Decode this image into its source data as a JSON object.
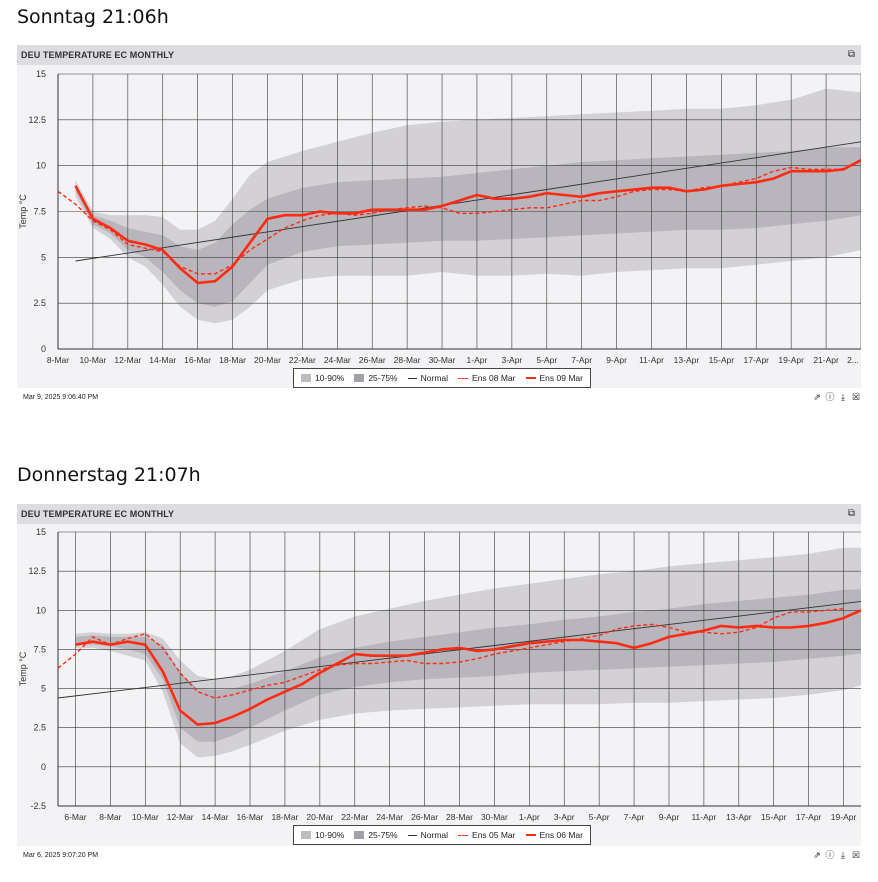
{
  "captions": [
    "Sonntag 21:06h",
    "Donnerstag 21:07h"
  ],
  "colors": {
    "band_outer": "#c8c6cc",
    "band_inner": "#a9a7ad",
    "normal": "#333333",
    "ens": "#ff2a12",
    "header": "#dddce0",
    "plot_bg": "#f3f2f4"
  },
  "icons": {
    "window": "restore-window-icon",
    "tools": [
      "external-link-icon",
      "info-icon",
      "download-icon",
      "excel-icon"
    ]
  },
  "panels": [
    {
      "title": "DEU TEMPERATURE EC MONTHLY",
      "timestamp": "Mar 9, 2025 9:06:40 PM",
      "legend": [
        "10-90%",
        "25-75%",
        "Normal",
        "Ens 08 Mar",
        "Ens 09 Mar"
      ],
      "chart_data": {
        "type": "line",
        "ylabel": "Temp °C",
        "ylim": [
          0,
          15
        ],
        "yticks": [
          0,
          2.5,
          5,
          7.5,
          10,
          12.5,
          15
        ],
        "ytick_labels": [
          "0",
          "2.5",
          "5",
          "7.5",
          "10",
          "12.5",
          "15"
        ],
        "x_range": [
          "8-Mar",
          "23-Apr"
        ],
        "xtick_labels": [
          "8-Mar",
          "10-Mar",
          "12-Mar",
          "14-Mar",
          "16-Mar",
          "18-Mar",
          "20-Mar",
          "22-Mar",
          "24-Mar",
          "26-Mar",
          "28-Mar",
          "30-Mar",
          "1-Apr",
          "3-Apr",
          "5-Apr",
          "7-Apr",
          "9-Apr",
          "11-Apr",
          "13-Apr",
          "15-Apr",
          "17-Apr",
          "19-Apr",
          "21-Apr",
          "2..."
        ],
        "grid": true,
        "legend_position": "bottom-center",
        "series": [
          {
            "name": "10-90%",
            "kind": "band",
            "x": [
              "9-Mar",
              "10-Mar",
              "11-Mar",
              "12-Mar",
              "13-Mar",
              "14-Mar",
              "15-Mar",
              "16-Mar",
              "17-Mar",
              "18-Mar",
              "19-Mar",
              "20-Mar",
              "22-Mar",
              "24-Mar",
              "26-Mar",
              "28-Mar",
              "30-Mar",
              "1-Apr",
              "3-Apr",
              "5-Apr",
              "7-Apr",
              "9-Apr",
              "11-Apr",
              "13-Apr",
              "15-Apr",
              "17-Apr",
              "19-Apr",
              "21-Apr",
              "23-Apr"
            ],
            "low": [
              8.3,
              6.6,
              6.0,
              5.0,
              4.5,
              3.5,
              2.3,
              1.6,
              1.4,
              1.6,
              2.3,
              3.2,
              3.8,
              4.0,
              4.0,
              4.0,
              4.2,
              4.0,
              4.0,
              4.1,
              4.0,
              4.2,
              4.3,
              4.4,
              4.4,
              4.6,
              4.8,
              5.0,
              5.4
            ],
            "high": [
              9.2,
              7.5,
              7.3,
              7.3,
              7.3,
              7.2,
              6.5,
              6.5,
              7.0,
              8.2,
              9.5,
              10.2,
              10.8,
              11.3,
              11.8,
              12.2,
              12.4,
              12.5,
              12.6,
              12.7,
              12.8,
              12.9,
              13.0,
              13.1,
              13.1,
              13.3,
              13.6,
              14.2,
              14.0
            ]
          },
          {
            "name": "25-75%",
            "kind": "band",
            "x": [
              "9-Mar",
              "10-Mar",
              "11-Mar",
              "12-Mar",
              "13-Mar",
              "14-Mar",
              "15-Mar",
              "16-Mar",
              "17-Mar",
              "18-Mar",
              "19-Mar",
              "20-Mar",
              "22-Mar",
              "24-Mar",
              "26-Mar",
              "28-Mar",
              "30-Mar",
              "1-Apr",
              "3-Apr",
              "5-Apr",
              "7-Apr",
              "9-Apr",
              "11-Apr",
              "13-Apr",
              "15-Apr",
              "17-Apr",
              "19-Apr",
              "21-Apr",
              "23-Apr"
            ],
            "low": [
              8.6,
              6.8,
              6.3,
              5.4,
              5.0,
              4.2,
              3.2,
              2.5,
              2.3,
              2.6,
              3.6,
              4.6,
              5.3,
              5.6,
              5.7,
              5.8,
              5.9,
              5.9,
              6.0,
              6.1,
              6.2,
              6.3,
              6.4,
              6.5,
              6.5,
              6.6,
              6.8,
              7.0,
              7.3
            ],
            "high": [
              9.0,
              7.3,
              7.0,
              6.6,
              6.4,
              6.2,
              5.6,
              5.4,
              5.8,
              6.8,
              7.6,
              8.2,
              8.8,
              9.1,
              9.2,
              9.3,
              9.4,
              9.6,
              9.8,
              10.0,
              10.2,
              10.3,
              10.4,
              10.5,
              10.6,
              10.7,
              10.8,
              11.0,
              11.0
            ]
          },
          {
            "name": "Normal",
            "kind": "line",
            "x": [
              "9-Mar",
              "23-Apr"
            ],
            "y": [
              4.8,
              11.3
            ]
          },
          {
            "name": "Ens 08 Mar",
            "kind": "dashed",
            "x": [
              "8-Mar",
              "9-Mar",
              "10-Mar",
              "11-Mar",
              "12-Mar",
              "13-Mar",
              "14-Mar",
              "15-Mar",
              "16-Mar",
              "17-Mar",
              "18-Mar",
              "19-Mar",
              "20-Mar",
              "21-Mar",
              "22-Mar",
              "23-Mar",
              "24-Mar",
              "25-Mar",
              "26-Mar",
              "27-Mar",
              "28-Mar",
              "29-Mar",
              "30-Mar",
              "31-Mar",
              "1-Apr",
              "2-Apr",
              "3-Apr",
              "4-Apr",
              "5-Apr",
              "6-Apr",
              "7-Apr",
              "8-Apr",
              "9-Apr",
              "10-Apr",
              "11-Apr",
              "12-Apr",
              "13-Apr",
              "14-Apr",
              "15-Apr",
              "16-Apr",
              "17-Apr",
              "18-Apr",
              "19-Apr",
              "20-Apr",
              "21-Apr",
              "22-Apr"
            ],
            "y": [
              8.6,
              7.9,
              7.0,
              6.5,
              5.7,
              5.5,
              5.3,
              4.5,
              4.1,
              4.1,
              4.6,
              5.4,
              6.0,
              6.6,
              7.0,
              7.3,
              7.4,
              7.3,
              7.4,
              7.6,
              7.7,
              7.8,
              7.7,
              7.4,
              7.4,
              7.5,
              7.6,
              7.7,
              7.7,
              7.9,
              8.1,
              8.1,
              8.3,
              8.6,
              8.7,
              8.7,
              8.6,
              8.8,
              8.9,
              9.1,
              9.3,
              9.7,
              9.9,
              9.8,
              9.8,
              9.8
            ]
          },
          {
            "name": "Ens 09 Mar",
            "kind": "line",
            "x": [
              "9-Mar",
              "10-Mar",
              "11-Mar",
              "12-Mar",
              "13-Mar",
              "14-Mar",
              "15-Mar",
              "16-Mar",
              "17-Mar",
              "18-Mar",
              "19-Mar",
              "20-Mar",
              "21-Mar",
              "22-Mar",
              "23-Mar",
              "24-Mar",
              "25-Mar",
              "26-Mar",
              "27-Mar",
              "28-Mar",
              "29-Mar",
              "30-Mar",
              "31-Mar",
              "1-Apr",
              "2-Apr",
              "3-Apr",
              "4-Apr",
              "5-Apr",
              "6-Apr",
              "7-Apr",
              "8-Apr",
              "9-Apr",
              "10-Apr",
              "11-Apr",
              "12-Apr",
              "13-Apr",
              "14-Apr",
              "15-Apr",
              "16-Apr",
              "17-Apr",
              "18-Apr",
              "19-Apr",
              "20-Apr",
              "21-Apr",
              "22-Apr",
              "23-Apr"
            ],
            "y": [
              8.9,
              7.1,
              6.6,
              5.9,
              5.7,
              5.4,
              4.4,
              3.6,
              3.7,
              4.5,
              5.8,
              7.1,
              7.3,
              7.3,
              7.5,
              7.4,
              7.4,
              7.6,
              7.6,
              7.6,
              7.6,
              7.8,
              8.1,
              8.4,
              8.2,
              8.2,
              8.3,
              8.5,
              8.4,
              8.3,
              8.5,
              8.6,
              8.7,
              8.8,
              8.8,
              8.6,
              8.7,
              8.9,
              9.0,
              9.1,
              9.3,
              9.7,
              9.7,
              9.7,
              9.8,
              10.3
            ]
          }
        ]
      }
    },
    {
      "title": "DEU TEMPERATURE EC MONTHLY",
      "timestamp": "Mar 6, 2025 9:07:20 PM",
      "legend": [
        "10-90%",
        "25-75%",
        "Normal",
        "Ens 05 Mar",
        "Ens 06 Mar"
      ],
      "chart_data": {
        "type": "line",
        "ylabel": "Temp °C",
        "ylim": [
          -2.5,
          15
        ],
        "yticks": [
          -2.5,
          0,
          2.5,
          5,
          7.5,
          10,
          12.5,
          15
        ],
        "ytick_labels": [
          "-2.5",
          "0",
          "2.5",
          "5",
          "7.5",
          "10",
          "12.5",
          "15"
        ],
        "x_range": [
          "5-Mar",
          "20-Apr"
        ],
        "xtick_labels": [
          "6-Mar",
          "8-Mar",
          "10-Mar",
          "12-Mar",
          "14-Mar",
          "16-Mar",
          "18-Mar",
          "20-Mar",
          "22-Mar",
          "24-Mar",
          "26-Mar",
          "28-Mar",
          "30-Mar",
          "1-Apr",
          "3-Apr",
          "5-Apr",
          "7-Apr",
          "9-Apr",
          "11-Apr",
          "13-Apr",
          "15-Apr",
          "17-Apr",
          "19-Apr"
        ],
        "grid": true,
        "legend_position": "bottom-center",
        "series": [
          {
            "name": "10-90%",
            "kind": "band",
            "x": [
              "6-Mar",
              "7-Mar",
              "8-Mar",
              "9-Mar",
              "10-Mar",
              "11-Mar",
              "12-Mar",
              "13-Mar",
              "14-Mar",
              "15-Mar",
              "16-Mar",
              "18-Mar",
              "20-Mar",
              "22-Mar",
              "24-Mar",
              "26-Mar",
              "28-Mar",
              "30-Mar",
              "1-Apr",
              "3-Apr",
              "5-Apr",
              "7-Apr",
              "9-Apr",
              "11-Apr",
              "13-Apr",
              "15-Apr",
              "17-Apr",
              "19-Apr",
              "21-Apr"
            ],
            "low": [
              7.6,
              7.6,
              7.4,
              7.1,
              6.8,
              4.8,
              1.5,
              0.6,
              0.7,
              1.0,
              1.4,
              2.3,
              3.0,
              3.4,
              3.6,
              3.7,
              3.8,
              3.9,
              4.0,
              4.0,
              4.0,
              4.1,
              4.1,
              4.2,
              4.3,
              4.4,
              4.6,
              4.9,
              5.5
            ],
            "high": [
              8.5,
              8.6,
              8.5,
              8.5,
              8.6,
              8.2,
              6.8,
              5.8,
              5.6,
              5.8,
              6.2,
              7.4,
              8.8,
              9.6,
              10.1,
              10.6,
              11.0,
              11.4,
              11.7,
              12.0,
              12.3,
              12.5,
              12.8,
              13.0,
              13.2,
              13.4,
              13.6,
              14.0,
              14.0
            ]
          },
          {
            "name": "25-75%",
            "kind": "band",
            "x": [
              "6-Mar",
              "7-Mar",
              "8-Mar",
              "9-Mar",
              "10-Mar",
              "11-Mar",
              "12-Mar",
              "13-Mar",
              "14-Mar",
              "15-Mar",
              "16-Mar",
              "18-Mar",
              "20-Mar",
              "22-Mar",
              "24-Mar",
              "26-Mar",
              "28-Mar",
              "30-Mar",
              "1-Apr",
              "3-Apr",
              "5-Apr",
              "7-Apr",
              "9-Apr",
              "11-Apr",
              "13-Apr",
              "15-Apr",
              "17-Apr",
              "19-Apr",
              "21-Apr"
            ],
            "low": [
              7.8,
              7.8,
              7.7,
              7.5,
              7.2,
              5.6,
              2.5,
              1.6,
              1.6,
              2.0,
              2.5,
              3.6,
              4.6,
              5.1,
              5.4,
              5.6,
              5.7,
              5.8,
              6.0,
              6.1,
              6.2,
              6.3,
              6.4,
              6.5,
              6.6,
              6.7,
              6.9,
              7.1,
              7.4
            ],
            "high": [
              8.3,
              8.4,
              8.3,
              8.3,
              8.3,
              7.8,
              6.0,
              5.0,
              4.9,
              5.0,
              5.3,
              6.1,
              7.0,
              7.6,
              8.0,
              8.3,
              8.6,
              8.9,
              9.1,
              9.4,
              9.6,
              9.9,
              10.1,
              10.4,
              10.6,
              10.8,
              11.0,
              11.3,
              11.4
            ]
          },
          {
            "name": "Normal",
            "kind": "line",
            "x": [
              "5-Mar",
              "21-Apr"
            ],
            "y": [
              4.4,
              10.7
            ]
          },
          {
            "name": "Ens 05 Mar",
            "kind": "dashed",
            "x": [
              "5-Mar",
              "6-Mar",
              "7-Mar",
              "8-Mar",
              "9-Mar",
              "10-Mar",
              "11-Mar",
              "12-Mar",
              "13-Mar",
              "14-Mar",
              "15-Mar",
              "16-Mar",
              "17-Mar",
              "18-Mar",
              "19-Mar",
              "20-Mar",
              "21-Mar",
              "22-Mar",
              "23-Mar",
              "24-Mar",
              "25-Mar",
              "26-Mar",
              "27-Mar",
              "28-Mar",
              "29-Mar",
              "30-Mar",
              "31-Mar",
              "1-Apr",
              "2-Apr",
              "3-Apr",
              "4-Apr",
              "5-Apr",
              "6-Apr",
              "7-Apr",
              "8-Apr",
              "9-Apr",
              "10-Apr",
              "11-Apr",
              "12-Apr",
              "13-Apr",
              "14-Apr",
              "15-Apr",
              "16-Apr",
              "17-Apr",
              "18-Apr",
              "19-Apr"
            ],
            "y": [
              6.3,
              7.2,
              8.3,
              7.8,
              8.2,
              8.5,
              7.6,
              6.0,
              4.8,
              4.4,
              4.6,
              4.9,
              5.2,
              5.4,
              5.8,
              6.2,
              6.5,
              6.6,
              6.6,
              6.7,
              6.8,
              6.6,
              6.6,
              6.7,
              6.9,
              7.2,
              7.4,
              7.6,
              7.8,
              8.0,
              8.2,
              8.4,
              8.8,
              9.0,
              9.1,
              8.9,
              8.6,
              8.6,
              8.5,
              8.6,
              8.9,
              9.5,
              9.9,
              9.9,
              10.0,
              10.1
            ]
          },
          {
            "name": "Ens 06 Mar",
            "kind": "line",
            "x": [
              "6-Mar",
              "7-Mar",
              "8-Mar",
              "9-Mar",
              "10-Mar",
              "11-Mar",
              "12-Mar",
              "13-Mar",
              "14-Mar",
              "15-Mar",
              "16-Mar",
              "17-Mar",
              "18-Mar",
              "19-Mar",
              "20-Mar",
              "21-Mar",
              "22-Mar",
              "23-Mar",
              "24-Mar",
              "25-Mar",
              "26-Mar",
              "27-Mar",
              "28-Mar",
              "29-Mar",
              "30-Mar",
              "31-Mar",
              "1-Apr",
              "2-Apr",
              "3-Apr",
              "4-Apr",
              "5-Apr",
              "6-Apr",
              "7-Apr",
              "8-Apr",
              "9-Apr",
              "10-Apr",
              "11-Apr",
              "12-Apr",
              "13-Apr",
              "14-Apr",
              "15-Apr",
              "16-Apr",
              "17-Apr",
              "18-Apr",
              "19-Apr",
              "20-Apr"
            ],
            "y": [
              7.8,
              8.0,
              7.8,
              8.0,
              7.8,
              6.1,
              3.6,
              2.7,
              2.8,
              3.2,
              3.7,
              4.3,
              4.8,
              5.3,
              6.0,
              6.6,
              7.2,
              7.1,
              7.1,
              7.1,
              7.3,
              7.5,
              7.6,
              7.4,
              7.5,
              7.7,
              7.9,
              8.0,
              8.1,
              8.1,
              8.0,
              7.9,
              7.6,
              7.9,
              8.3,
              8.5,
              8.7,
              9.0,
              8.9,
              9.0,
              8.9,
              8.9,
              9.0,
              9.2,
              9.5,
              10.0
            ]
          }
        ]
      }
    }
  ]
}
